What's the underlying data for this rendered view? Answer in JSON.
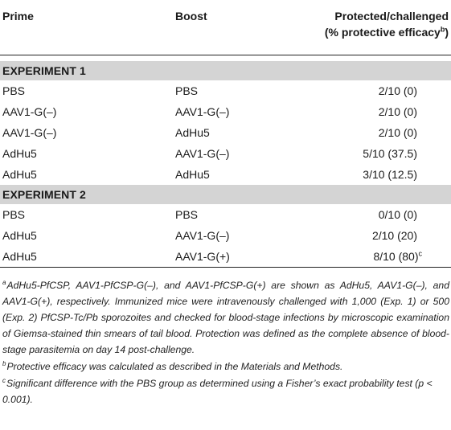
{
  "headers": {
    "prime": "Prime",
    "boost": "Boost",
    "protected_line1": "Protected/challenged",
    "protected_line2": "(% protective efficacy",
    "protected_sup": "b",
    "protected_close": ")"
  },
  "experiment1": {
    "title": "EXPERIMENT 1",
    "rows": [
      {
        "prime": "PBS",
        "boost": "PBS",
        "protected": "2/10 (0)"
      },
      {
        "prime": "AAV1-G(–)",
        "boost": "AAV1-G(–)",
        "protected": "2/10 (0)"
      },
      {
        "prime": "AAV1-G(–)",
        "boost": "AdHu5",
        "protected": "2/10 (0)"
      },
      {
        "prime": "AdHu5",
        "boost": "AAV1-G(–)",
        "protected": "5/10 (37.5)"
      },
      {
        "prime": "AdHu5",
        "boost": "AdHu5",
        "protected": "3/10 (12.5)"
      }
    ]
  },
  "experiment2": {
    "title": "EXPERIMENT 2",
    "rows": [
      {
        "prime": "PBS",
        "boost": "PBS",
        "protected": "0/10 (0)"
      },
      {
        "prime": "AdHu5",
        "boost": "AAV1-G(–)",
        "protected": "2/10 (20)"
      },
      {
        "prime": "AdHu5",
        "boost": "AAV1-G(+)",
        "protected": "8/10 (80)",
        "sup": "c"
      }
    ]
  },
  "footnotes": [
    {
      "mark": "a",
      "text": "AdHu5-PfCSP, AAV1-PfCSP-G(–), and AAV1-PfCSP-G(+) are shown as AdHu5, AAV1-G(–), and AAV1-G(+), respectively. Immunized mice were intravenously challenged with 1,000 (Exp. 1) or 500 (Exp. 2) PfCSP-Tc/Pb sporozoites and checked for blood-stage infections by microscopic examination of Giemsa-stained thin smears of tail blood. Protection was defined as the complete absence of blood-stage parasitemia on day 14 post-challenge."
    },
    {
      "mark": "b",
      "text": "Protective efficacy was calculated as described in the Materials and Methods."
    },
    {
      "mark": "c",
      "text": "Significant difference with the PBS group as determined using a Fisher’s exact probability test (p < 0.001)."
    }
  ]
}
